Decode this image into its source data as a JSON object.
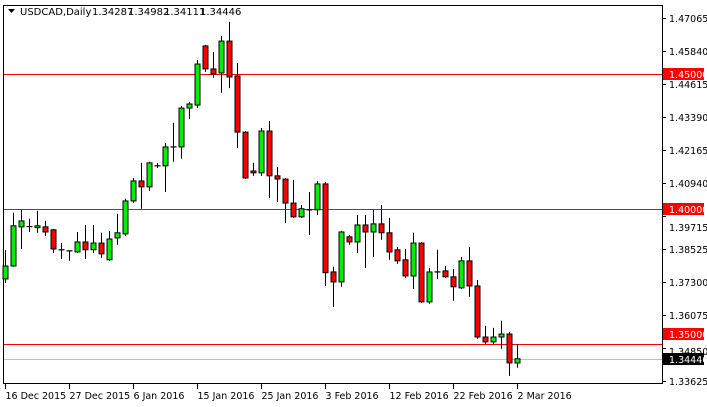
{
  "header": {
    "symbol_timeframe": "USDCAD,Daily",
    "open": "1.34287",
    "high": "1.34982",
    "low": "1.34111",
    "close": "1.34446",
    "menu_icon": "triangle-down-icon"
  },
  "chart_data": {
    "type": "candlestick",
    "title": "USDCAD,Daily",
    "ylim": [
      1.33625,
      1.47065
    ],
    "grid": false,
    "colors": {
      "bull": "#00ee00",
      "bear": "#ff0000",
      "outline": "#000000",
      "level_line": "#ff0000",
      "bid_line": "#c0c0c0",
      "bid_label_bg": "#000000"
    },
    "ohlc_fields": [
      "open",
      "high",
      "low",
      "close"
    ],
    "ohlc": [
      [
        1.374,
        1.3847,
        1.3725,
        1.3788
      ],
      [
        1.3788,
        1.3985,
        1.3785,
        1.3937
      ],
      [
        1.3933,
        1.3996,
        1.3851,
        1.3955
      ],
      [
        1.3933,
        1.3963,
        1.3914,
        1.3934
      ],
      [
        1.393,
        1.3992,
        1.3911,
        1.3937
      ],
      [
        1.3933,
        1.3955,
        1.3899,
        1.3914
      ],
      [
        1.3922,
        1.3925,
        1.3836,
        1.3851
      ],
      [
        1.3848,
        1.3873,
        1.3814,
        1.3848
      ],
      [
        1.3844,
        1.3846,
        1.3807,
        1.3842
      ],
      [
        1.384,
        1.3914,
        1.3836,
        1.3877
      ],
      [
        1.3877,
        1.394,
        1.3814,
        1.3848
      ],
      [
        1.3848,
        1.394,
        1.3836,
        1.3873
      ],
      [
        1.3873,
        1.3911,
        1.3818,
        1.3833
      ],
      [
        1.3811,
        1.3918,
        1.3807,
        1.3888
      ],
      [
        1.3892,
        1.3981,
        1.3866,
        1.3911
      ],
      [
        1.3907,
        1.4037,
        1.3899,
        1.4029
      ],
      [
        1.4029,
        1.4114,
        1.4022,
        1.4103
      ],
      [
        1.4103,
        1.417,
        1.4,
        1.4081
      ],
      [
        1.4081,
        1.4174,
        1.4066,
        1.417
      ],
      [
        1.4159,
        1.417,
        1.4151,
        1.4159
      ],
      [
        1.4159,
        1.4244,
        1.4062,
        1.4229
      ],
      [
        1.4229,
        1.4318,
        1.4174,
        1.4229
      ],
      [
        1.4229,
        1.4381,
        1.4185,
        1.4373
      ],
      [
        1.4373,
        1.4396,
        1.4333,
        1.4388
      ],
      [
        1.4384,
        1.4551,
        1.4373,
        1.4536
      ],
      [
        1.4603,
        1.4607,
        1.4507,
        1.4518
      ],
      [
        1.4518,
        1.4581,
        1.4485,
        1.4499
      ],
      [
        1.4503,
        1.464,
        1.4429,
        1.4621
      ],
      [
        1.4621,
        1.4692,
        1.4447,
        1.4488
      ],
      [
        1.4492,
        1.454,
        1.4225,
        1.4284
      ],
      [
        1.4284,
        1.4288,
        1.411,
        1.4114
      ],
      [
        1.414,
        1.417,
        1.4122,
        1.4133
      ],
      [
        1.4133,
        1.4299,
        1.4122,
        1.4288
      ],
      [
        1.4288,
        1.4325,
        1.404,
        1.4122
      ],
      [
        1.4122,
        1.4155,
        1.4025,
        1.411
      ],
      [
        1.411,
        1.4114,
        1.3947,
        1.4021
      ],
      [
        1.4021,
        1.4107,
        1.3966,
        1.397
      ],
      [
        1.397,
        1.4014,
        1.3966,
        1.4
      ],
      [
        1.3996,
        1.4062,
        1.3903,
        1.3996
      ],
      [
        1.3996,
        1.4103,
        1.3977,
        1.4092
      ],
      [
        1.4092,
        1.4099,
        1.3714,
        1.3763
      ],
      [
        1.3766,
        1.3785,
        1.3636,
        1.3729
      ],
      [
        1.3729,
        1.3918,
        1.3711,
        1.3914
      ],
      [
        1.3896,
        1.3903,
        1.3866,
        1.3877
      ],
      [
        1.3877,
        1.3977,
        1.3836,
        1.394
      ],
      [
        1.394,
        1.3977,
        1.3781,
        1.3914
      ],
      [
        1.3914,
        1.3996,
        1.3821,
        1.3944
      ],
      [
        1.3944,
        1.4014,
        1.3885,
        1.3911
      ],
      [
        1.3911,
        1.3966,
        1.3811,
        1.384
      ],
      [
        1.3848,
        1.3859,
        1.3796,
        1.3807
      ],
      [
        1.3811,
        1.3851,
        1.3744,
        1.3751
      ],
      [
        1.3751,
        1.3911,
        1.3703,
        1.3873
      ],
      [
        1.3873,
        1.3877,
        1.3651,
        1.3655
      ],
      [
        1.3655,
        1.3781,
        1.3648,
        1.3766
      ],
      [
        1.3766,
        1.3848,
        1.374,
        1.3763
      ],
      [
        1.377,
        1.3788,
        1.3744,
        1.3748
      ],
      [
        1.3748,
        1.3777,
        1.3659,
        1.3711
      ],
      [
        1.3707,
        1.3822,
        1.3703,
        1.3807
      ],
      [
        1.3807,
        1.3859,
        1.3674,
        1.3714
      ],
      [
        1.3714,
        1.3736,
        1.3518,
        1.3525
      ],
      [
        1.3525,
        1.3566,
        1.3499,
        1.3507
      ],
      [
        1.3507,
        1.3559,
        1.3499,
        1.3525
      ],
      [
        1.3525,
        1.3585,
        1.3481,
        1.3536
      ],
      [
        1.3536,
        1.3544,
        1.3381,
        1.3429
      ],
      [
        1.34287,
        1.34982,
        1.34111,
        1.34446
      ]
    ],
    "y_ticks": [
      "1.47065",
      "1.45840",
      "1.44615",
      "1.43390",
      "1.42165",
      "1.40940",
      "1.39715",
      "1.38525",
      "1.37300",
      "1.36075",
      "1.34850",
      "1.33625"
    ],
    "x_ticks": [
      {
        "label": "16 Dec 2015",
        "bar": 0
      },
      {
        "label": "27 Dec 2015",
        "bar": 8
      },
      {
        "label": "6 Jan 2016",
        "bar": 16
      },
      {
        "label": "15 Jan 2016",
        "bar": 24
      },
      {
        "label": "25 Jan 2016",
        "bar": 32
      },
      {
        "label": "3 Feb 2016",
        "bar": 40
      },
      {
        "label": "12 Feb 2016",
        "bar": 48
      },
      {
        "label": "22 Feb 2016",
        "bar": 56
      },
      {
        "label": "2 Mar 2016",
        "bar": 64
      }
    ],
    "levels": [
      {
        "value": 1.45,
        "label": "1.45000"
      },
      {
        "value": 1.4,
        "label": "1.40000"
      },
      {
        "value": 1.35,
        "label": "1.35000"
      }
    ],
    "bid": {
      "value": 1.34446,
      "label": "1.34446"
    }
  }
}
